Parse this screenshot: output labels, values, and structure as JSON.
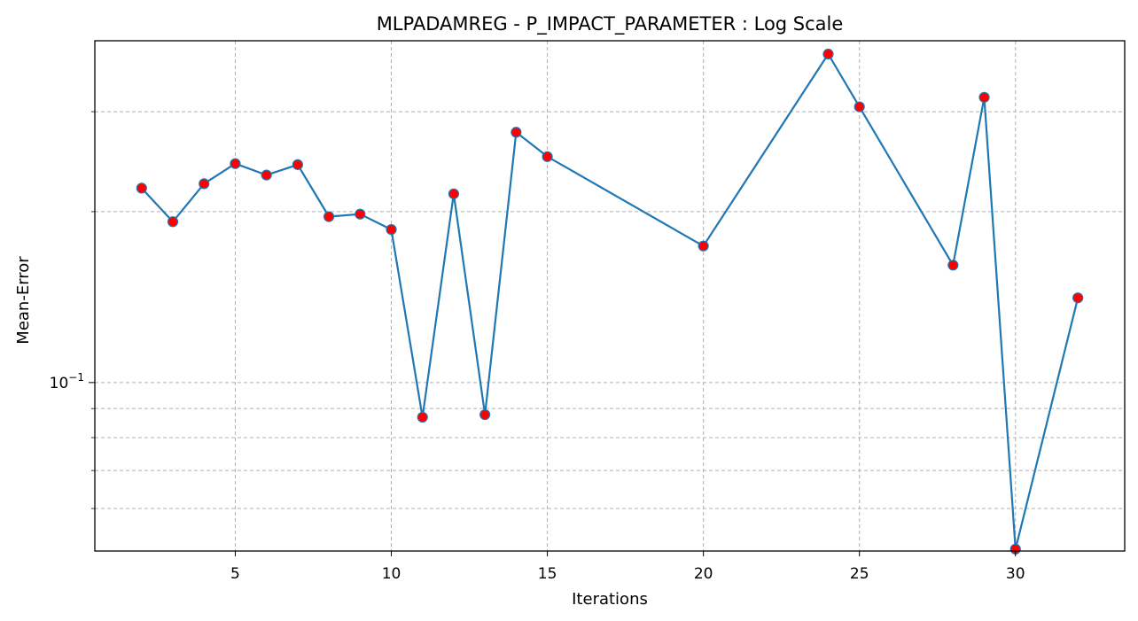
{
  "chart_data": {
    "type": "line",
    "title": "MLPADAMREG - P_IMPACT_PARAMETER : Log Scale",
    "xlabel": "Iterations",
    "ylabel": "Mean-Error",
    "yscale": "log",
    "xlim": [
      0.5,
      33.5
    ],
    "ylim": [
      0.0505,
      0.4
    ],
    "grid": true,
    "x_ticks": [
      5,
      10,
      15,
      20,
      25,
      30
    ],
    "x_tick_labels": [
      "5",
      "10",
      "15",
      "20",
      "25",
      "30"
    ],
    "y_major_ticks": [
      0.1
    ],
    "y_major_tick_labels": [
      {
        "base": "10",
        "exp": "−1"
      }
    ],
    "y_minor_ticks": [
      0.06,
      0.07,
      0.08,
      0.09,
      0.2,
      0.3
    ],
    "line_color": "#1f77b4",
    "marker_face_color": "#ff0000",
    "series": [
      {
        "x": [
          2,
          3,
          4,
          5,
          6,
          7,
          8,
          9,
          10,
          11,
          12,
          13,
          14,
          15,
          20,
          24,
          25,
          28,
          29,
          30,
          32
        ],
        "y": [
          0.22,
          0.192,
          0.224,
          0.243,
          0.232,
          0.242,
          0.196,
          0.198,
          0.186,
          0.0869,
          0.215,
          0.0878,
          0.276,
          0.25,
          0.174,
          0.379,
          0.306,
          0.161,
          0.318,
          0.0509,
          0.141
        ]
      }
    ]
  }
}
